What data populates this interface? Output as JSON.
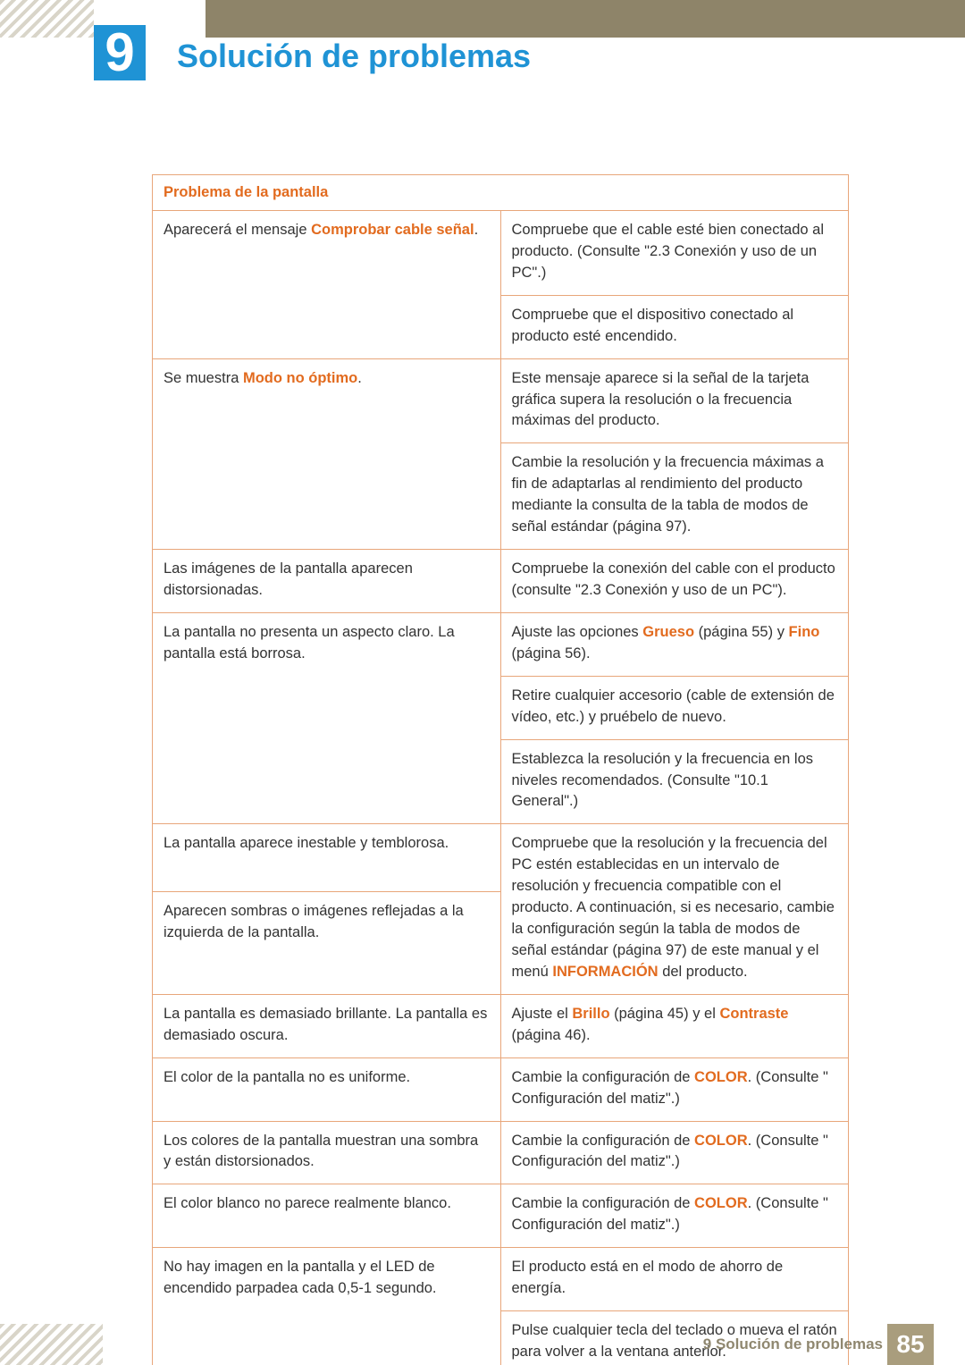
{
  "chapter": {
    "number": "9",
    "title": "Solución de problemas"
  },
  "table": {
    "header": "Problema de la pantalla",
    "r1": {
      "left_a": "Aparecerá el mensaje ",
      "left_b_kw": "Comprobar cable señal",
      "left_c": ".",
      "right": "Compruebe que el cable esté bien conectado al producto. (Consulte \"2.3 Conexión y uso de un PC\".)"
    },
    "r1b": {
      "right": "Compruebe que el dispositivo conectado al producto esté encendido."
    },
    "r2": {
      "left_a": "Se muestra ",
      "left_b_kw": "Modo no óptimo",
      "left_c": ".",
      "right": "Este mensaje aparece si la señal de la tarjeta gráfica supera la resolución o la frecuencia máximas del producto."
    },
    "r2b": {
      "right": "Cambie la resolución y la frecuencia máximas a fin de adaptarlas al rendimiento del producto mediante la consulta de la tabla de modos de señal estándar (página 97)."
    },
    "r3": {
      "left": "Las imágenes de la pantalla aparecen distorsionadas.",
      "right": "Compruebe la conexión del cable con el producto (consulte \"2.3 Conexión y uso de un PC\")."
    },
    "r4": {
      "left": "La pantalla no presenta un aspecto claro. La pantalla está borrosa.",
      "right_a": "Ajuste las opciones ",
      "right_kw1": "Grueso",
      "right_b": " (página 55) y ",
      "right_kw2": "Fino",
      "right_c": " (página 56)."
    },
    "r4b": {
      "right": "Retire cualquier accesorio (cable de extensión de vídeo, etc.) y pruébelo de nuevo."
    },
    "r4c": {
      "right": "Establezca la resolución y la frecuencia en los niveles recomendados. (Consulte \"10.1 General\".)"
    },
    "r5": {
      "left": "La pantalla aparece inestable y temblorosa.",
      "right_a": "Compruebe que la resolución y la frecuencia del PC estén establecidas en un intervalo de resolución y frecuencia compatible con el producto. A continuación, si es necesario, cambie la configuración según la tabla de modos de señal estándar (página 97) de este manual y el menú ",
      "right_kw": "INFORMACIÓN",
      "right_b": " del producto."
    },
    "r6": {
      "left": "Aparecen sombras o imágenes reflejadas a la izquierda de la pantalla."
    },
    "r7": {
      "left": "La pantalla es demasiado brillante. La pantalla es demasiado oscura.",
      "right_a": "Ajuste el ",
      "right_kw1": "Brillo",
      "right_b": " (página 45) y el ",
      "right_kw2": "Contraste",
      "right_c": " (página 46)."
    },
    "r8": {
      "left": "El color de la pantalla no es uniforme.",
      "right_a": "Cambie la configuración de ",
      "right_kw": "COLOR",
      "right_b": ". (Consulte \" Configuración del matiz\".)"
    },
    "r9": {
      "left": "Los colores de la pantalla muestran una sombra y están distorsionados.",
      "right_a": "Cambie la configuración de ",
      "right_kw": "COLOR",
      "right_b": ". (Consulte \" Configuración del matiz\".)"
    },
    "r10": {
      "left": "El color blanco no parece realmente blanco.",
      "right_a": "Cambie la configuración de ",
      "right_kw": "COLOR",
      "right_b": ". (Consulte \" Configuración del matiz\".)"
    },
    "r11": {
      "left": "No hay imagen en la pantalla y el LED de encendido parpadea cada 0,5-1 segundo.",
      "right": "El producto está en el modo de ahorro de energía."
    },
    "r11b": {
      "right": "Pulse cualquier tecla del teclado o mueva el ratón para volver a la ventana anterior."
    }
  },
  "footer": {
    "section_number": "9",
    "section_title": "Solución de problemas",
    "page": "85"
  },
  "colors": {
    "accent_blue": "#1f93d5",
    "accent_orange": "#e26b1f",
    "table_border": "#e8a67a",
    "footer_text": "#8f876f",
    "footer_pagebg": "#a99d7d",
    "topbar": "#8e8469"
  }
}
